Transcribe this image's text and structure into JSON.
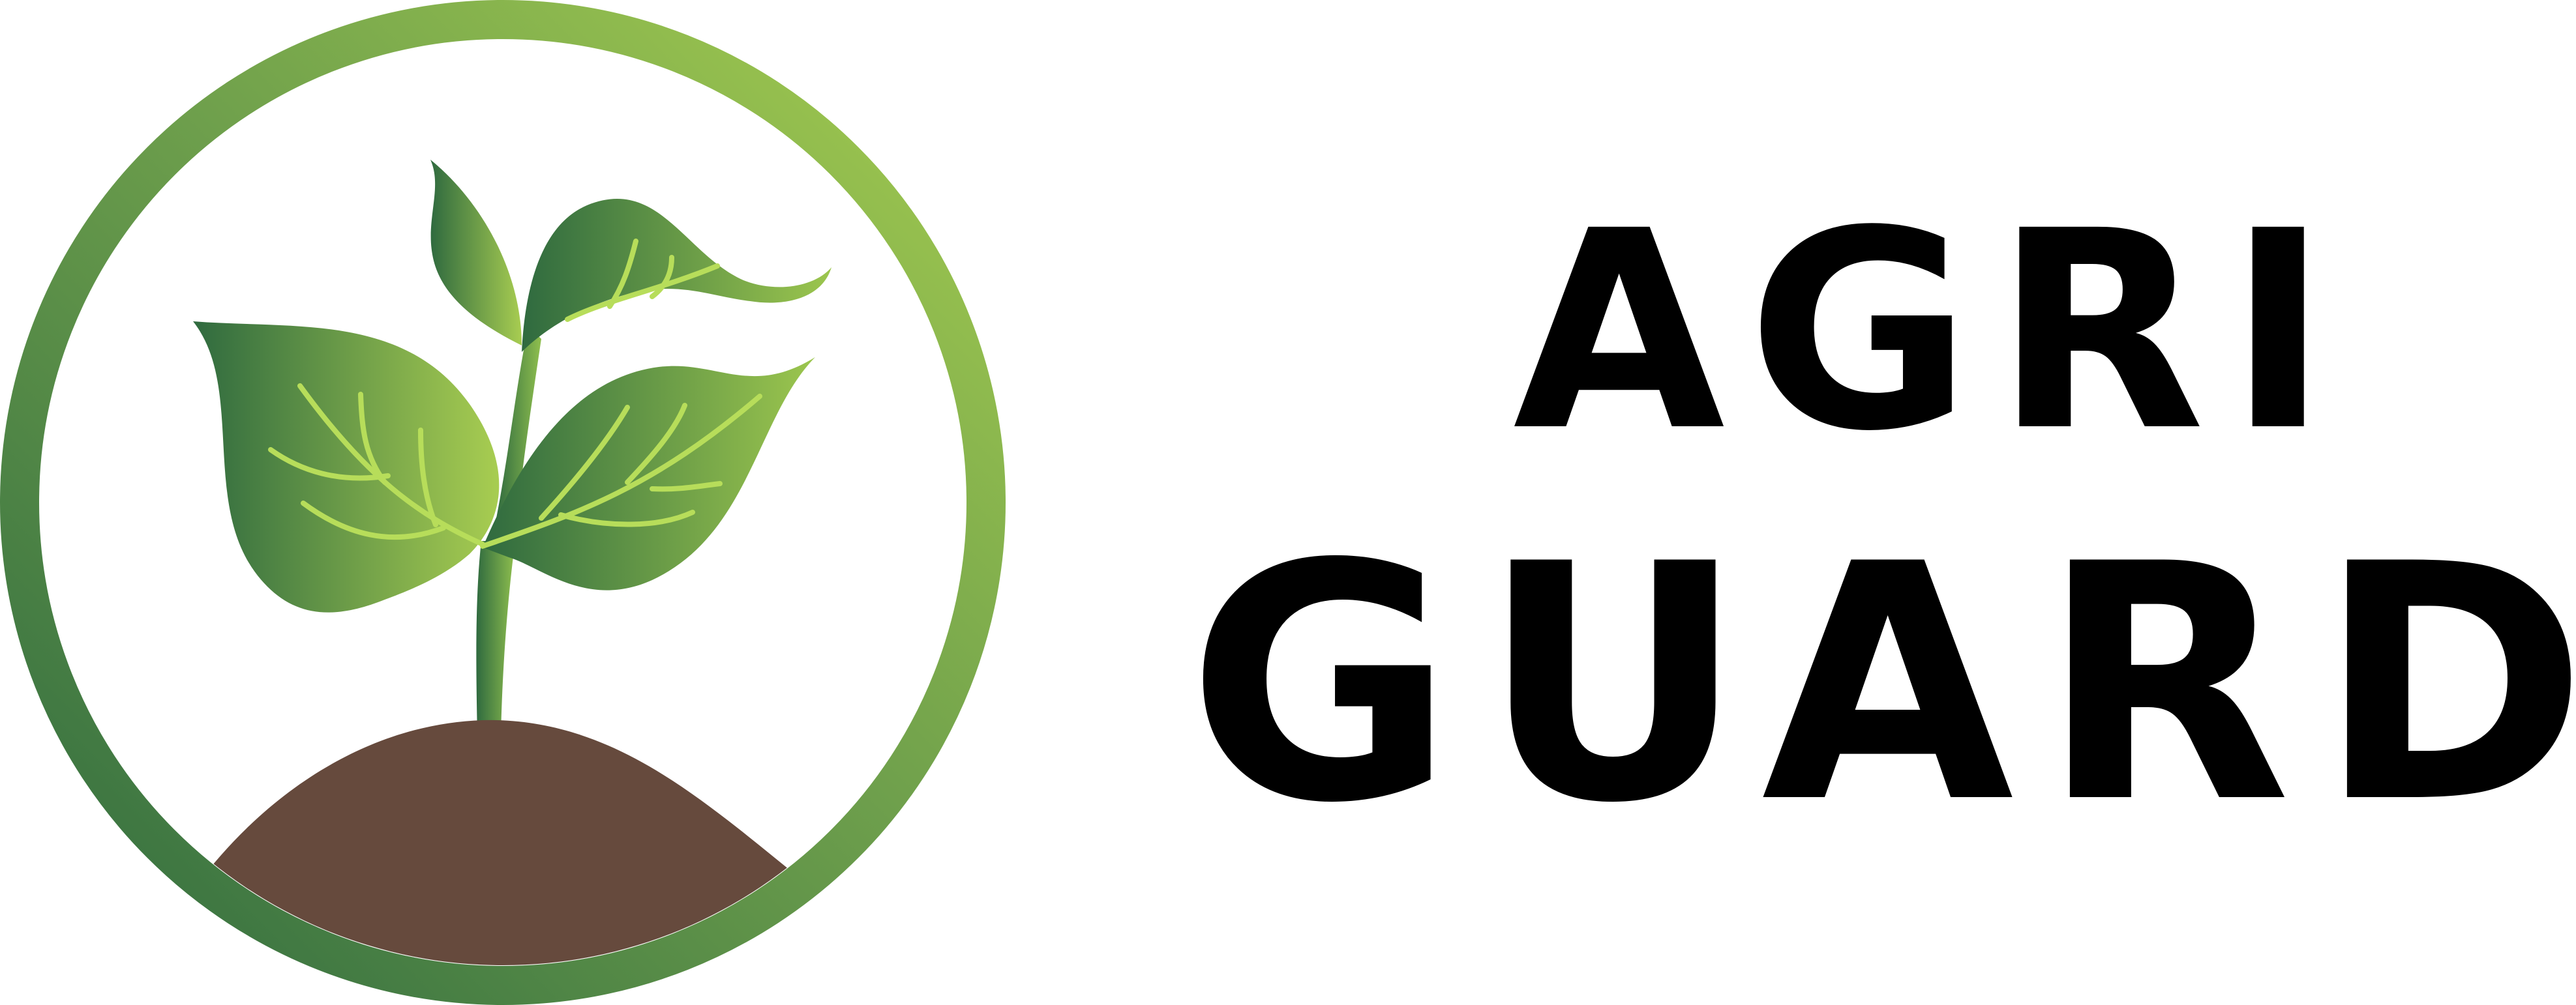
{
  "brand": {
    "line1": "AGRI",
    "line2": "GUARD"
  },
  "emblem": {
    "icon": "sprout-in-circle-icon",
    "colors": {
      "ring_dark": "#2f6a3f",
      "ring_light": "#a2c94e",
      "leaf_dark": "#2f6a3f",
      "leaf_light": "#a8cd51",
      "vein": "#b7dd5a",
      "soil": "#664a3d",
      "text": "#000000",
      "background": "#ffffff"
    }
  }
}
